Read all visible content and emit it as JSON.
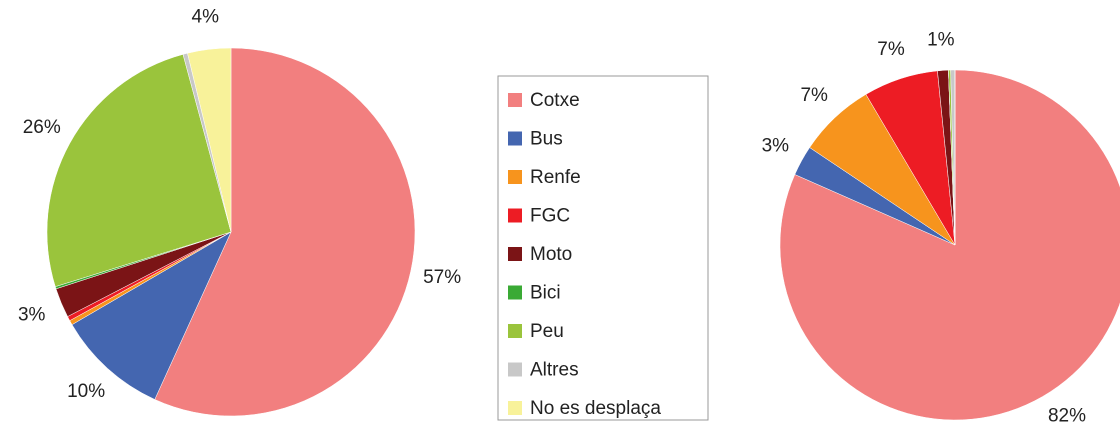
{
  "chart_data": [
    {
      "type": "pie",
      "categories": [
        "Cotxe",
        "Bus",
        "Renfe",
        "FGC",
        "Moto",
        "Bici",
        "Peu",
        "Altres",
        "No es desplaça"
      ],
      "values": [
        56.8,
        9.8,
        0.4,
        0.4,
        2.6,
        0.2,
        25.6,
        0.4,
        3.8
      ],
      "value_labels": [
        "57%",
        "10%",
        null,
        null,
        "3%",
        null,
        "26%",
        null,
        "4%"
      ],
      "colors": [
        "#f27f7f",
        "#4466b0",
        "#f7941d",
        "#ed1c24",
        "#7b1416",
        "#3aaa35",
        "#9ac43c",
        "#c8c8c8",
        "#f8f29a"
      ]
    },
    {
      "type": "pie",
      "categories": [
        "Cotxe",
        "Bus",
        "Renfe",
        "FGC",
        "Moto",
        "Bici",
        "Peu",
        "Altres",
        "No es desplaça"
      ],
      "values": [
        81.6,
        2.8,
        7.1,
        6.9,
        1.0,
        0,
        0.2,
        0.4,
        0
      ],
      "value_labels": [
        "82%",
        "3%",
        "7%",
        "7%",
        "1%",
        null,
        null,
        null,
        null
      ],
      "colors": [
        "#f27f7f",
        "#4466b0",
        "#f7941d",
        "#ed1c24",
        "#7b1416",
        "#3aaa35",
        "#9ac43c",
        "#c8c8c8",
        "#f8f29a"
      ]
    }
  ]
}
